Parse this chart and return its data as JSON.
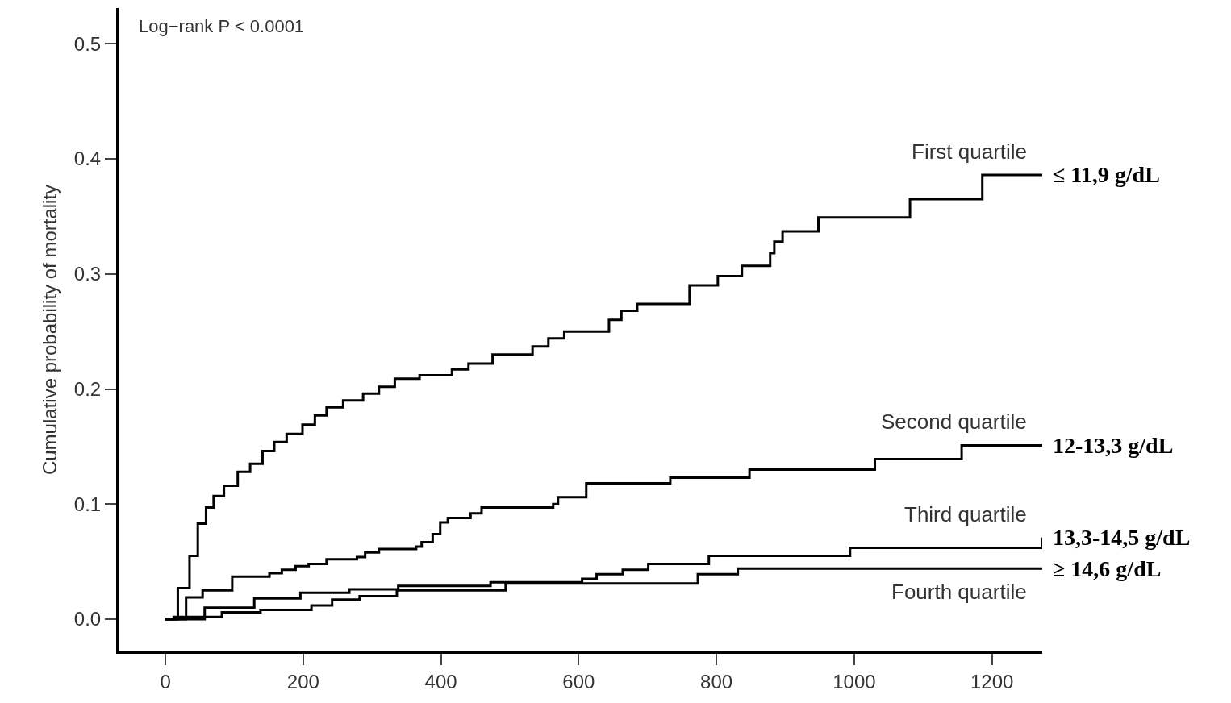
{
  "chart_data": {
    "type": "step",
    "ylabel": "Cumulative probability of mortality",
    "xlim": [
      -68,
      1273
    ],
    "ylim": [
      -0.028,
      0.531
    ],
    "xticks": [
      0,
      200,
      400,
      600,
      800,
      1000,
      1200
    ],
    "yticks": [
      {
        "value": 0,
        "label": "0.0"
      },
      {
        "value": 0.1,
        "label": "0.1"
      },
      {
        "value": 0.2,
        "label": "0.2"
      },
      {
        "value": 0.3,
        "label": "0.3"
      },
      {
        "value": 0.4,
        "label": "0.4"
      },
      {
        "value": 0.5,
        "label": "0.5"
      }
    ],
    "legend": false,
    "line_style": "solid",
    "annotations": [
      "Log−rank P < 0.0001",
      "≤ 11,9 g/dL",
      "12-13,3 g/dL",
      "13,3-14,5 g/dL",
      "≥ 14,6 g/dL"
    ],
    "series": [
      {
        "name": "First quartile",
        "color": "#000000",
        "x": [
          0,
          18,
          35,
          47,
          59,
          70,
          85,
          105,
          123,
          141,
          158,
          176,
          199,
          217,
          234,
          258,
          287,
          310,
          333,
          369,
          416,
          440,
          475,
          533,
          556,
          579,
          644,
          662,
          685,
          761,
          802,
          837,
          878,
          884,
          896,
          948,
          1081,
          1186,
          1273
        ],
        "values": [
          0,
          0.027,
          0.055,
          0.083,
          0.097,
          0.107,
          0.116,
          0.128,
          0.135,
          0.146,
          0.154,
          0.161,
          0.169,
          0.177,
          0.184,
          0.19,
          0.196,
          0.202,
          0.209,
          0.212,
          0.217,
          0.222,
          0.23,
          0.237,
          0.244,
          0.25,
          0.26,
          0.268,
          0.274,
          0.29,
          0.298,
          0.307,
          0.318,
          0.328,
          0.337,
          0.349,
          0.365,
          0.386,
          0.386
        ]
      },
      {
        "name": "Second quartile",
        "color": "#000000",
        "x": [
          0,
          30,
          54,
          97,
          151,
          169,
          189,
          208,
          234,
          278,
          290,
          310,
          364,
          372,
          388,
          399,
          410,
          443,
          459,
          563,
          570,
          611,
          733,
          848,
          1030,
          1156,
          1273
        ],
        "values": [
          0,
          0.019,
          0.025,
          0.037,
          0.04,
          0.043,
          0.046,
          0.048,
          0.052,
          0.054,
          0.058,
          0.061,
          0.063,
          0.067,
          0.074,
          0.084,
          0.088,
          0.092,
          0.097,
          0.1,
          0.106,
          0.118,
          0.123,
          0.13,
          0.139,
          0.151,
          0.151
        ]
      },
      {
        "name": "Third quartile",
        "color": "#000000",
        "x": [
          0,
          57,
          129,
          196,
          267,
          338,
          472,
          605,
          626,
          664,
          701,
          789,
          994,
          1273
        ],
        "values": [
          0,
          0.01,
          0.018,
          0.023,
          0.026,
          0.029,
          0.032,
          0.035,
          0.039,
          0.043,
          0.048,
          0.055,
          0.062,
          0.071
        ]
      },
      {
        "name": "Fourth quartile",
        "color": "#000000",
        "x": [
          0,
          12,
          82,
          138,
          212,
          242,
          282,
          336,
          494,
          773,
          831,
          1273
        ],
        "values": [
          0,
          0.002,
          0.006,
          0.008,
          0.012,
          0.017,
          0.02,
          0.025,
          0.031,
          0.039,
          0.044,
          0.044
        ]
      }
    ]
  }
}
